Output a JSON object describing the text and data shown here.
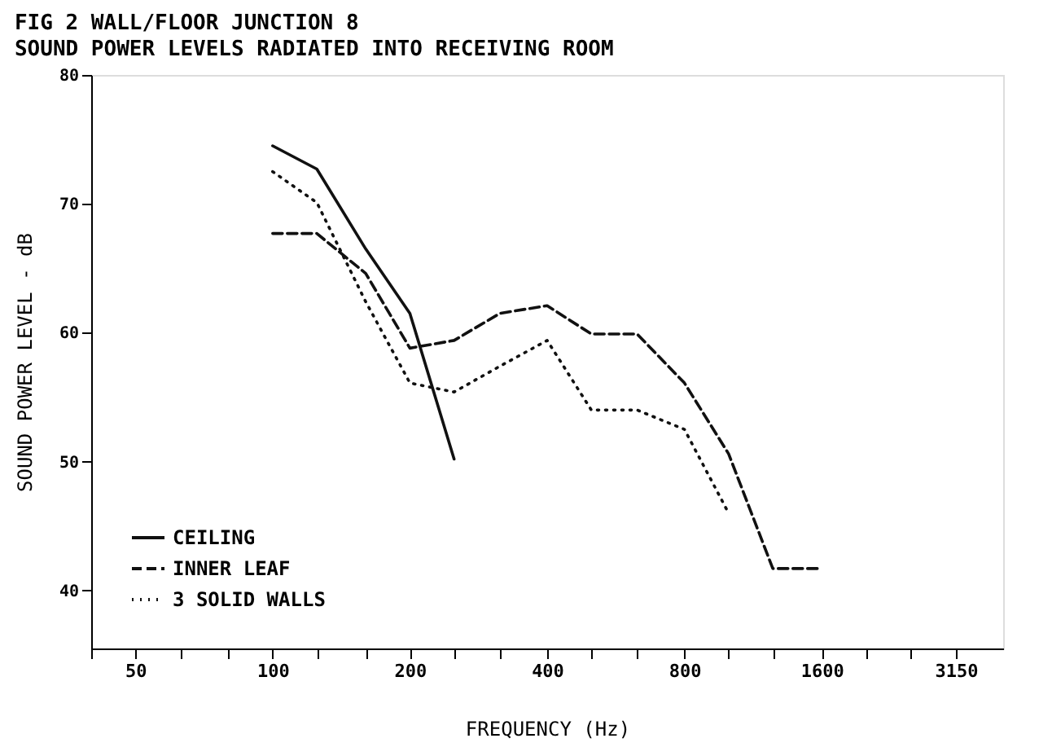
{
  "chart_data": {
    "type": "line",
    "title": "FIG 2    WALL/FLOOR JUNCTION 8",
    "subtitle": "SOUND POWER LEVELS RADIATED INTO RECEIVING ROOM",
    "xlabel": "FREQUENCY (Hz)",
    "ylabel": "SOUND POWER LEVEL - dB",
    "log": "x",
    "xlim": [
      40,
      4000
    ],
    "ylim": [
      35.5,
      80
    ],
    "xticks": [
      {
        "value": 40,
        "label": null
      },
      50,
      {
        "value": 63,
        "label": null
      },
      {
        "value": 80,
        "label": null
      },
      100,
      {
        "value": 125,
        "label": null
      },
      {
        "value": 160,
        "label": null
      },
      200,
      {
        "value": 250,
        "label": null
      },
      {
        "value": 315,
        "label": null
      },
      400,
      {
        "value": 500,
        "label": null
      },
      {
        "value": 630,
        "label": null
      },
      800,
      {
        "value": 1000,
        "label": null
      },
      {
        "value": 1250,
        "label": null
      },
      1600,
      {
        "value": 2000,
        "label": null
      },
      {
        "value": 2500,
        "label": null
      },
      3150
    ],
    "yticks": [
      40,
      50,
      60,
      70,
      80
    ],
    "grid": false,
    "legend": "bottom left",
    "marker": "none",
    "series": [
      {
        "name": "CEILING",
        "color": "#111111",
        "line_style": "solid",
        "x": [
          100,
          125,
          160,
          200,
          250
        ],
        "values": [
          74.5,
          72.7,
          66.5,
          61.5,
          50.2
        ]
      },
      {
        "name": "INNER LEAF",
        "color": "#111111",
        "line_style": "dashed",
        "x": [
          100,
          125,
          160,
          200,
          250,
          315,
          400,
          500,
          630,
          800,
          1000,
          1250,
          1600
        ],
        "values": [
          67.7,
          67.7,
          64.6,
          58.8,
          59.4,
          61.5,
          62.1,
          59.9,
          59.9,
          56.1,
          50.6,
          41.7,
          41.7
        ]
      },
      {
        "name": "3 SOLID WALLS",
        "color": "#111111",
        "line_style": "dotted",
        "x": [
          100,
          125,
          160,
          200,
          250,
          315,
          400,
          500,
          630,
          800,
          1000
        ],
        "values": [
          72.5,
          70.1,
          62.4,
          56.1,
          55.4,
          57.4,
          59.4,
          54.0,
          54.0,
          52.5,
          46.0
        ]
      }
    ]
  }
}
